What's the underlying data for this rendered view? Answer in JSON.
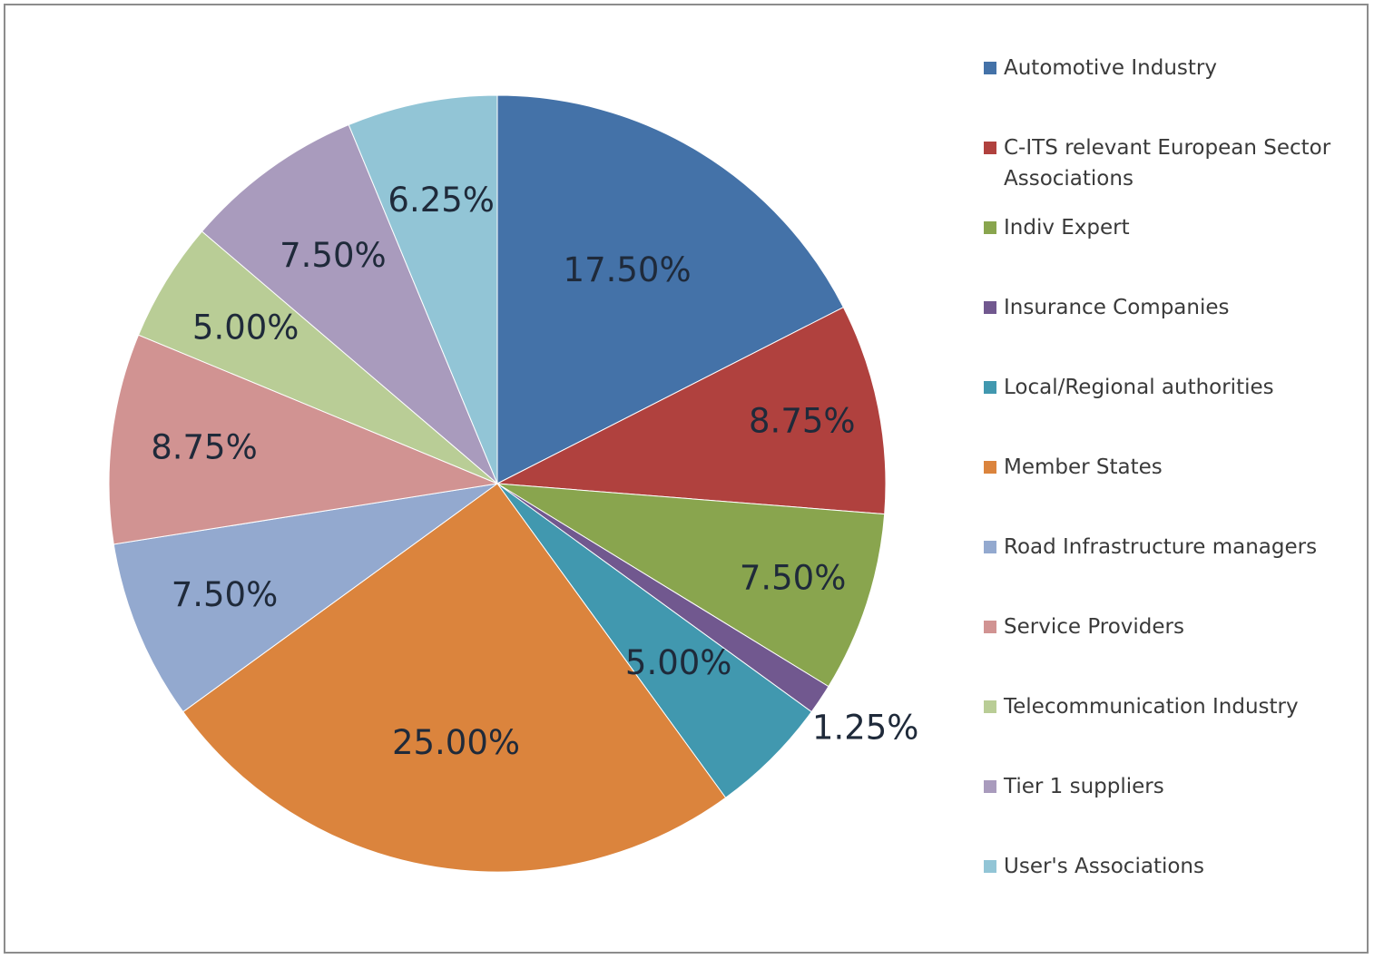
{
  "chart_data": {
    "type": "pie",
    "labels": [
      "Automotive Industry",
      "C-ITS relevant European Sector Associations",
      "Indiv Expert",
      "Insurance Companies",
      "Local/Regional authorities",
      "Member States",
      "Road Infrastructure managers",
      "Service Providers",
      "Telecommunication Industry",
      "Tier 1 suppliers",
      "User's Associations"
    ],
    "values": [
      17.5,
      8.75,
      7.5,
      1.25,
      5.0,
      25.0,
      7.5,
      8.75,
      5.0,
      7.5,
      6.25
    ],
    "value_labels": [
      "17.50%",
      "8.75%",
      "7.50%",
      "1.25%",
      "5.00%",
      "25.00%",
      "7.50%",
      "8.75%",
      "5.00%",
      "7.50%",
      "6.25%"
    ],
    "colors": [
      "#4472a8",
      "#b0413e",
      "#89a54e",
      "#71588f",
      "#4198af",
      "#db843d",
      "#93a9cf",
      "#d19392",
      "#b9cd96",
      "#a99bbd",
      "#92c5d6"
    ],
    "start_angle": "12 o'clock",
    "direction": "clockwise",
    "legend_position": "right",
    "title": ""
  }
}
